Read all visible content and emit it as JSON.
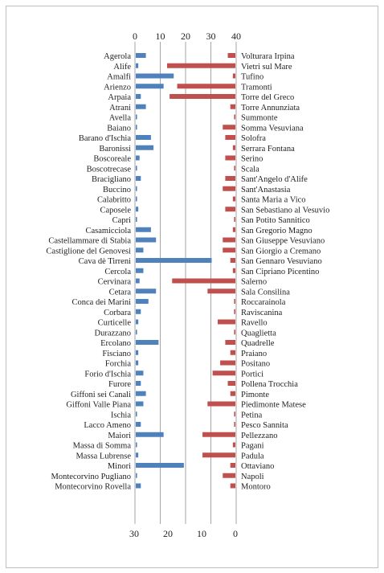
{
  "chart_data": {
    "type": "bar",
    "orientation": "horizontal",
    "title": "",
    "grid": true,
    "colors": {
      "blue": "#4f81bd",
      "red": "#c0504d",
      "grid": "#a6a6a6"
    },
    "top_axis": {
      "range": [
        0,
        40
      ],
      "ticks": [
        "0",
        "10",
        "20",
        "30",
        "40"
      ]
    },
    "bottom_axis": {
      "range": [
        30,
        0
      ],
      "ticks": [
        "30",
        "20",
        "10",
        "0"
      ]
    },
    "series": [
      {
        "side": "left",
        "color": "#4f81bd",
        "categories": [
          "Agerola",
          "Alife",
          "Amalfi",
          "Arienzo",
          "Arpaia",
          "Atrani",
          "Avella",
          "Baiano",
          "Barano d'Ischia",
          "Baronissi",
          "Boscoreale",
          "Boscotrecase",
          "Bracigliano",
          "Buccino",
          "Calabritto",
          "Caposele",
          "Capri",
          "Casamicciola",
          "Castellammare di Stabia",
          "Castiglione del Genovesi",
          "Cava dè Tirreni",
          "Cercola",
          "Cervinara",
          "Cetara",
          "Conca dei Marini",
          "Corbara",
          "Curticelle",
          "Durazzano",
          "Ercolano",
          "Fisciano",
          "Forchia",
          "Forio d'Ischia",
          "Furore",
          "Giffoni sei Canali",
          "Giffoni Valle Piana",
          "Ischia",
          "Lacco Ameno",
          "Maiori",
          "Massa di Somma",
          "Massa Lubrense",
          "Minori",
          "Montecorvino Pugliano",
          "Montecorvino Rovella"
        ],
        "values": [
          4,
          1,
          15,
          11,
          2,
          4,
          0.5,
          0.5,
          6,
          7,
          1.5,
          0.5,
          2,
          0.5,
          0.5,
          1,
          0.5,
          6,
          8,
          3,
          30,
          3,
          1.5,
          8,
          5,
          2,
          1,
          0.5,
          9,
          1,
          1,
          3,
          2,
          4,
          3,
          0.5,
          2,
          11,
          0.5,
          1,
          19,
          0.5,
          2
        ]
      },
      {
        "side": "right",
        "color": "#c0504d",
        "categories": [
          "Volturara Irpina",
          "Vietri sul Mare",
          "Tufino",
          "Tramonti",
          "Torre del Greco",
          "Torre Annunziata",
          "Summonte",
          "Somma Vesuviana",
          "Solofra",
          "Serrara Fontana",
          "Serino",
          "Scala",
          "Sant'Angelo d'Alife",
          "Sant'Anastasia",
          "Santa Maria a Vico",
          "San Sebastiano al Vesuvio",
          "San Potito Sannitico",
          "San Gregorio Magno",
          "San Giuseppe Vesuviano",
          "San Giorgio a Cremano",
          "San Gennaro Vesuviano",
          "San Cipriano Picentino",
          "Salerno",
          "Sala Consilina",
          "Roccarainola",
          "Raviscanina",
          "Ravello",
          "Quaglietta",
          "Quadrelle",
          "Praiano",
          "Positano",
          "Portici",
          "Pollena Trocchia",
          "Pimonte",
          "Piedimonte Matese",
          "Petina",
          "Pesco Sannita",
          "Pellezzano",
          "Pagani",
          "Padula",
          "Ottaviano",
          "Napoli",
          "Montoro"
        ],
        "values": [
          3,
          27,
          1,
          23,
          26,
          2,
          0.5,
          5,
          4,
          1,
          4,
          0.5,
          4,
          5,
          1,
          4,
          0.5,
          1,
          5,
          5,
          2,
          1,
          25,
          11,
          0.5,
          0.5,
          7,
          0.5,
          4,
          2,
          6,
          9,
          3,
          2,
          11,
          0.5,
          0.5,
          13,
          1,
          13,
          2,
          5,
          2
        ]
      }
    ]
  }
}
